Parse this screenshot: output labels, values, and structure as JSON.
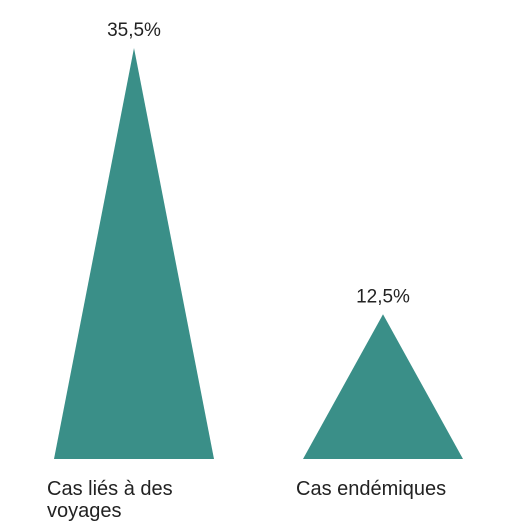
{
  "chart_data": {
    "type": "triangle-bar",
    "categories": [
      "Cas liés à des voyages",
      "Cas endémiques"
    ],
    "values": [
      35.5,
      12.5
    ],
    "value_labels": [
      "35,5%",
      "12,5%"
    ],
    "color": "#3a8f88"
  }
}
